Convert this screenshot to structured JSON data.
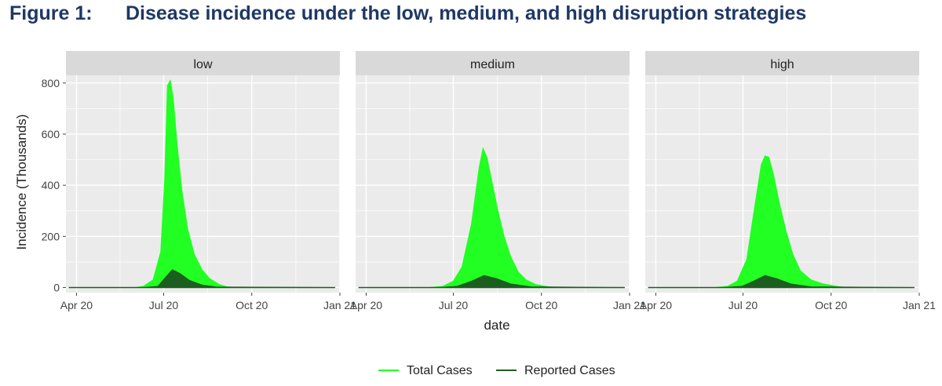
{
  "figure": {
    "number": "Figure 1:",
    "title": "Disease incidence under the low, medium, and high disruption strategies"
  },
  "colors": {
    "total": "#22ff22",
    "reported": "#1c5e20",
    "panel_bg": "#ebebeb",
    "strip_bg": "#d9d9d9",
    "grid": "#ffffff"
  },
  "chart_data": {
    "type": "area",
    "facets": [
      "low",
      "medium",
      "high"
    ],
    "xlabel": "date",
    "ylabel": "Incidence (Thousands)",
    "xlim": [
      "2020-03-21",
      "2021-01-01"
    ],
    "ylim": [
      -20,
      830
    ],
    "x_ticks": [
      "2020-04-01",
      "2020-07-01",
      "2020-10-01",
      "2021-01-01"
    ],
    "x_tick_labels": [
      "Apr 20",
      "Jul 20",
      "Oct 20",
      "Jan 21"
    ],
    "y_ticks": [
      0,
      200,
      400,
      600,
      800
    ],
    "y_tick_labels": [
      "0",
      "200",
      "400",
      "600",
      "800"
    ],
    "legend": {
      "position": "bottom",
      "entries": [
        "Total Cases",
        "Reported Cases"
      ]
    },
    "grid": true,
    "series": [
      {
        "name": "Total Cases",
        "panels": {
          "low": {
            "x": [
              "2020-03-24",
              "2020-06-01",
              "2020-06-10",
              "2020-06-20",
              "2020-06-28",
              "2020-07-02",
              "2020-07-05",
              "2020-07-08",
              "2020-07-11",
              "2020-07-15",
              "2020-07-20",
              "2020-07-26",
              "2020-08-02",
              "2020-08-10",
              "2020-08-18",
              "2020-08-28",
              "2020-09-05",
              "2020-09-15",
              "2020-12-27"
            ],
            "y": [
              0,
              0,
              5,
              30,
              140,
              420,
              790,
              810,
              740,
              560,
              380,
              230,
              130,
              70,
              35,
              12,
              3,
              0,
              0
            ]
          },
          "medium": {
            "x": [
              "2020-03-24",
              "2020-06-05",
              "2020-06-20",
              "2020-07-01",
              "2020-07-10",
              "2020-07-20",
              "2020-07-28",
              "2020-08-01",
              "2020-08-05",
              "2020-08-10",
              "2020-08-16",
              "2020-08-23",
              "2020-08-30",
              "2020-09-07",
              "2020-09-15",
              "2020-09-25",
              "2020-10-05",
              "2020-10-15",
              "2020-12-27"
            ],
            "y": [
              0,
              0,
              5,
              25,
              80,
              250,
              470,
              545,
              510,
              420,
              310,
              200,
              120,
              60,
              30,
              12,
              5,
              0,
              0
            ]
          },
          "high": {
            "x": [
              "2020-03-24",
              "2020-06-01",
              "2020-06-15",
              "2020-06-25",
              "2020-07-05",
              "2020-07-13",
              "2020-07-20",
              "2020-07-24",
              "2020-07-28",
              "2020-08-02",
              "2020-08-08",
              "2020-08-15",
              "2020-08-22",
              "2020-08-30",
              "2020-09-10",
              "2020-09-22",
              "2020-10-05",
              "2020-10-15",
              "2020-12-27"
            ],
            "y": [
              0,
              0,
              5,
              25,
              110,
              310,
              480,
              515,
              510,
              440,
              330,
              220,
              130,
              65,
              30,
              15,
              6,
              0,
              0
            ]
          }
        }
      },
      {
        "name": "Reported Cases",
        "panels": {
          "low": {
            "x": [
              "2020-03-24",
              "2020-06-10",
              "2020-06-25",
              "2020-07-03",
              "2020-07-10",
              "2020-07-18",
              "2020-07-28",
              "2020-08-10",
              "2020-08-25",
              "2020-12-27"
            ],
            "y": [
              0,
              0,
              5,
              40,
              70,
              55,
              28,
              10,
              2,
              0
            ]
          },
          "medium": {
            "x": [
              "2020-03-24",
              "2020-06-15",
              "2020-07-05",
              "2020-07-20",
              "2020-08-02",
              "2020-08-15",
              "2020-08-30",
              "2020-09-20",
              "2020-12-27"
            ],
            "y": [
              0,
              0,
              5,
              25,
              47,
              35,
              14,
              3,
              0
            ]
          },
          "high": {
            "x": [
              "2020-03-24",
              "2020-06-10",
              "2020-06-30",
              "2020-07-12",
              "2020-07-24",
              "2020-08-05",
              "2020-08-20",
              "2020-09-10",
              "2020-12-27"
            ],
            "y": [
              0,
              0,
              5,
              25,
              47,
              35,
              14,
              3,
              0
            ]
          }
        }
      }
    ]
  }
}
